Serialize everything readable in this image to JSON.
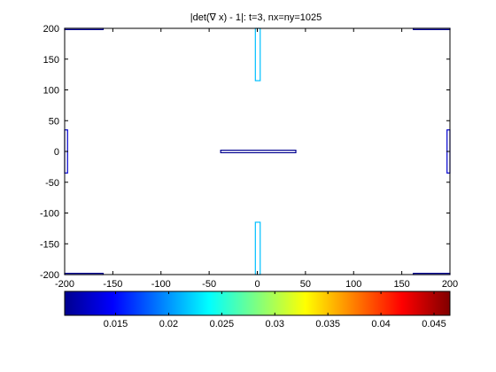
{
  "chart_data": [
    {
      "type": "contour",
      "title": "|det(∇ x) - 1|: t=3, nx=ny=1025",
      "xlabel": "",
      "ylabel": "",
      "xlim": [
        -200,
        200
      ],
      "ylim": [
        -200,
        200
      ],
      "x_ticks": [
        -200,
        -150,
        -100,
        -50,
        0,
        50,
        100,
        150,
        200
      ],
      "y_ticks": [
        200,
        150,
        100,
        50,
        0,
        -50,
        -100,
        -150,
        -200
      ],
      "grid": false,
      "colormap": "jet",
      "features": [
        {
          "name": "center-horizontal-band",
          "x": [
            -38,
            40
          ],
          "y": [
            -2,
            2
          ],
          "color": "#00008f"
        },
        {
          "name": "top-spike",
          "x": [
            -2,
            3
          ],
          "y": [
            115,
            200
          ],
          "color": "#00bfff"
        },
        {
          "name": "bottom-spike",
          "x": [
            -2,
            3
          ],
          "y": [
            -200,
            -115
          ],
          "color": "#00bfff"
        },
        {
          "name": "left-edge-mark",
          "x": [
            -200,
            -197
          ],
          "y": [
            -35,
            35
          ],
          "color": "#0000cf"
        },
        {
          "name": "right-edge-mark",
          "x": [
            197,
            200
          ],
          "y": [
            -35,
            35
          ],
          "color": "#0000cf"
        },
        {
          "name": "corner-top-left",
          "x": [
            -200,
            -160
          ],
          "y": [
            198,
            200
          ],
          "color": "#00008f"
        },
        {
          "name": "corner-top-right",
          "x": [
            162,
            200
          ],
          "y": [
            198,
            200
          ],
          "color": "#00008f"
        },
        {
          "name": "corner-bottom-left",
          "x": [
            -200,
            -160
          ],
          "y": [
            -200,
            -198
          ],
          "color": "#00008f"
        },
        {
          "name": "corner-bottom-right",
          "x": [
            162,
            200
          ],
          "y": [
            -200,
            -198
          ],
          "color": "#00008f"
        }
      ]
    },
    {
      "type": "colorbar",
      "colormap": "jet",
      "range": [
        0.0102,
        0.0465
      ],
      "ticks": [
        0.015,
        0.02,
        0.025,
        0.03,
        0.035,
        0.04,
        0.045
      ],
      "tick_labels": [
        "0.015",
        "0.02",
        "0.025",
        "0.03",
        "0.035",
        "0.04",
        "0.045"
      ]
    }
  ]
}
